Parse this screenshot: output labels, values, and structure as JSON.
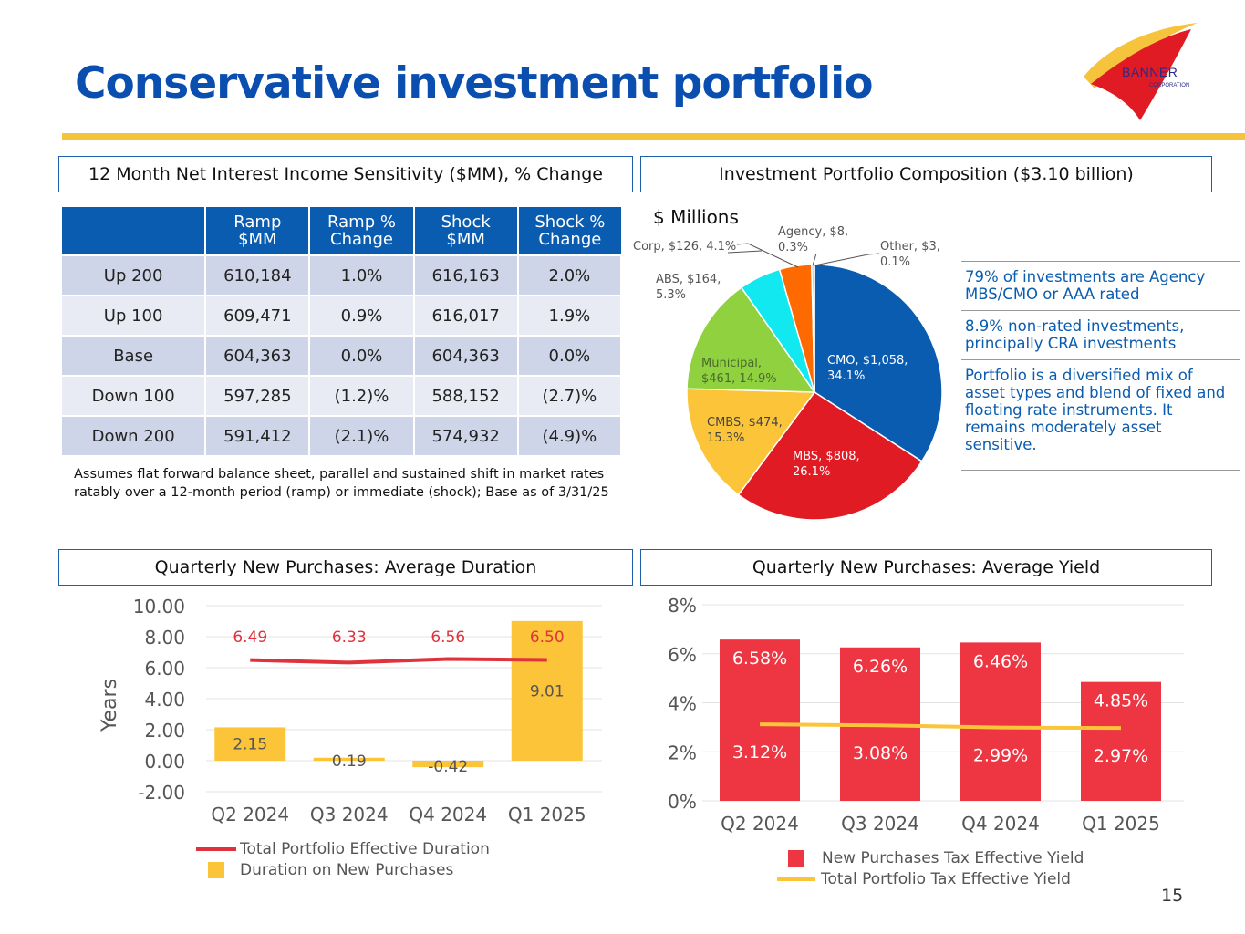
{
  "header": {
    "title": "Conservative investment portfolio",
    "logo": {
      "icon": "banner-sail-logo-icon",
      "name": "BANNER",
      "subtitle": "CORPORATION"
    },
    "accent_color": "#f6c33c",
    "title_color": "#0a4fb0"
  },
  "sections": {
    "nii": "12 Month Net Interest Income Sensitivity ($MM), % Change",
    "composition": "Investment Portfolio Composition ($3.10 billion)",
    "duration": "Quarterly New Purchases: Average Duration",
    "yield": "Quarterly New Purchases: Average Yield"
  },
  "nii_table": {
    "headers": [
      "",
      "Ramp\n$MM",
      "Ramp %\nChange",
      "Shock\n$MM",
      "Shock %\nChange"
    ],
    "header_lines": [
      [
        "",
        ""
      ],
      [
        "Ramp",
        "$MM"
      ],
      [
        "Ramp %",
        "Change"
      ],
      [
        "Shock",
        "$MM"
      ],
      [
        "Shock %",
        "Change"
      ]
    ],
    "rows": [
      [
        "Up 200",
        "610,184",
        "1.0%",
        "616,163",
        "2.0%"
      ],
      [
        "Up 100",
        "609,471",
        "0.9%",
        "616,017",
        "1.9%"
      ],
      [
        "Base",
        "604,363",
        "0.0%",
        "604,363",
        "0.0%"
      ],
      [
        "Down 100",
        "597,285",
        "(1.2)%",
        "588,152",
        "(2.7)%"
      ],
      [
        "Down 200",
        "591,412",
        "(2.1)%",
        "574,932",
        "(4.9)%"
      ]
    ],
    "footnote": "Assumes flat forward balance sheet, parallel and sustained shift in market rates ratably over a 12-month period (ramp) or immediate (shock); Base as of 3/31/25"
  },
  "bullets": [
    "79% of investments are Agency MBS/CMO or AAA rated",
    "8.9% non-rated investments, principally CRA investments",
    "Portfolio is a diversified mix of asset types and blend of fixed and floating rate instruments. It remains moderately asset sensitive."
  ],
  "page_number": "15",
  "chart_data": [
    {
      "type": "pie",
      "title": "$ Millions",
      "slices": [
        {
          "name": "CMO",
          "value": 1058,
          "pct": 34.1,
          "label": "CMO, $1,058, 34.1%",
          "color": "#0a5cb0"
        },
        {
          "name": "MBS",
          "value": 808,
          "pct": 26.1,
          "label": "MBS, $808, 26.1%",
          "color": "#e01b24"
        },
        {
          "name": "CMBS",
          "value": 474,
          "pct": 15.3,
          "label": "CMBS, $474, 15.3%",
          "color": "#fcc539"
        },
        {
          "name": "Municipal",
          "value": 461,
          "pct": 14.9,
          "label": "Municipal, $461, 14.9%",
          "color": "#8fd13f"
        },
        {
          "name": "ABS",
          "value": 164,
          "pct": 5.3,
          "label": "ABS, $164, 5.3%",
          "color": "#12e8f0"
        },
        {
          "name": "Corp",
          "value": 126,
          "pct": 4.1,
          "label": "Corp, $126, 4.1%",
          "color": "#ff6a00"
        },
        {
          "name": "Agency",
          "value": 8,
          "pct": 0.3,
          "label": "Agency, $8, 0.3%",
          "color": "#7fa0c8"
        },
        {
          "name": "Other",
          "value": 3,
          "pct": 0.1,
          "label": "Other, $3, 0.1%",
          "color": "#2f6db3"
        }
      ]
    },
    {
      "type": "bar",
      "title": "Quarterly New Purchases: Average Duration",
      "categories": [
        "Q2 2024",
        "Q3 2024",
        "Q4 2024",
        "Q1 2025"
      ],
      "ylabel": "Years",
      "ylim": [
        -2,
        10
      ],
      "yticks": [
        "10.00",
        "8.00",
        "6.00",
        "4.00",
        "2.00",
        "0.00",
        "-2.00"
      ],
      "ytick_values": [
        10,
        8,
        6,
        4,
        2,
        0,
        -2
      ],
      "grid": true,
      "legend": "bottom",
      "series": [
        {
          "name": "Duration on New Purchases",
          "type": "bar",
          "values": [
            2.15,
            0.19,
            -0.42,
            9.01
          ],
          "labels": [
            "2.15",
            "0.19",
            "-0.42",
            "9.01"
          ],
          "color": "#fcc539"
        },
        {
          "name": "Total Portfolio Effective Duration",
          "type": "line",
          "values": [
            6.49,
            6.33,
            6.56,
            6.5
          ],
          "labels": [
            "6.49",
            "6.33",
            "6.56",
            "6.50"
          ],
          "color": "#e0323c"
        }
      ],
      "legend_entries": [
        "Total Portfolio Effective Duration",
        "Duration on New Purchases"
      ]
    },
    {
      "type": "bar",
      "title": "Quarterly New Purchases: Average Yield",
      "categories": [
        "Q2 2024",
        "Q3 2024",
        "Q4 2024",
        "Q1 2025"
      ],
      "ylabel": "",
      "ylim": [
        0,
        8
      ],
      "yticks": [
        "8%",
        "6%",
        "4%",
        "2%",
        "0%"
      ],
      "ytick_values": [
        8,
        6,
        4,
        2,
        0
      ],
      "grid": true,
      "legend": "bottom",
      "series": [
        {
          "name": "New Purchases Tax Effective Yield",
          "type": "bar",
          "values": [
            6.58,
            6.26,
            6.46,
            4.85
          ],
          "labels": [
            "6.58%",
            "6.26%",
            "6.46%",
            "4.85%"
          ],
          "color": "#ee3542"
        },
        {
          "name": "Total Portfolio Tax Effective Yield",
          "type": "line",
          "values": [
            3.12,
            3.08,
            2.99,
            2.97
          ],
          "labels": [
            "3.12%",
            "3.08%",
            "2.99%",
            "2.97%"
          ],
          "color": "#fcc539"
        }
      ],
      "legend_entries": [
        "New Purchases Tax Effective Yield",
        "Total Portfolio Tax Effective Yield"
      ]
    }
  ]
}
